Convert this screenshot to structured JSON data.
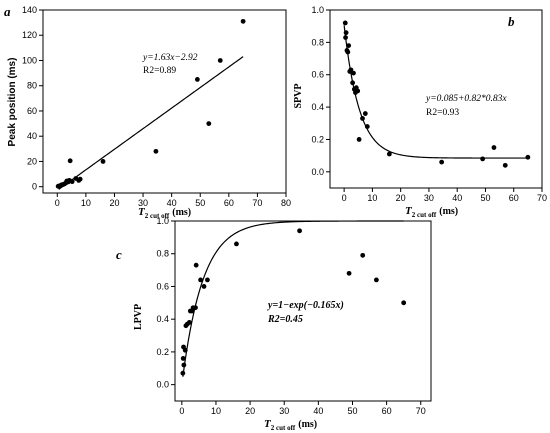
{
  "chart_data": [
    {
      "type": "scatter",
      "panel": "a",
      "xlabel": "T2 cut off (ms)",
      "xlabel_main": "T",
      "xlabel_sub": "2 cut off",
      "xlabel_unit": "(ms)",
      "ylabel": "Peak position (ms)",
      "xlim": [
        -5,
        80
      ],
      "ylim": [
        -5,
        140
      ],
      "xticks": [
        "0",
        "10",
        "20",
        "30",
        "40",
        "50",
        "60",
        "70",
        "80"
      ],
      "yticks": [
        "0",
        "20",
        "40",
        "60",
        "80",
        "100",
        "120",
        "140"
      ],
      "annotations": [
        "y=1.63x−2.92",
        "R2=0.89"
      ],
      "fit": {
        "kind": "linear",
        "slope": 1.63,
        "intercept": -2.92,
        "x_range": [
          0.5,
          65
        ]
      },
      "series": [
        {
          "points": [
            [
              0.3,
              0.3
            ],
            [
              0.6,
              0.5
            ],
            [
              1.0,
              0.8
            ],
            [
              1.5,
              1.5
            ],
            [
              2.0,
              1.7
            ],
            [
              2.5,
              2.2
            ],
            [
              3.0,
              3.0
            ],
            [
              3.3,
              4.5
            ],
            [
              3.8,
              3.8
            ],
            [
              4.2,
              5.0
            ],
            [
              4.5,
              20.5
            ],
            [
              5.2,
              4.0
            ],
            [
              6.5,
              6.5
            ],
            [
              7.5,
              5.0
            ],
            [
              8.0,
              6.0
            ],
            [
              16.0,
              20.0
            ],
            [
              34.5,
              28.0
            ],
            [
              49.0,
              85.0
            ],
            [
              53.0,
              50.0
            ],
            [
              57.0,
              100.0
            ],
            [
              65.0,
              131.0
            ]
          ]
        }
      ]
    },
    {
      "type": "scatter",
      "panel": "b",
      "xlabel": "T2 cut off (ms)",
      "xlabel_main": "T",
      "xlabel_sub": "2 cut off",
      "xlabel_unit": "(ms)",
      "ylabel": "SPVP",
      "xlim": [
        -5,
        70
      ],
      "ylim": [
        -0.1,
        1.0
      ],
      "xticks": [
        "0",
        "10",
        "20",
        "30",
        "40",
        "50",
        "60",
        "70"
      ],
      "yticks": [
        "0.0",
        "0.2",
        "0.4",
        "0.6",
        "0.8",
        "1.0"
      ],
      "annotations": [
        "y=0.085+0.82*0.83x",
        "R2=0.93"
      ],
      "fit": {
        "kind": "exponential",
        "a": 0.085,
        "b": 0.82,
        "base": 0.83,
        "x_range": [
          0.0,
          65
        ]
      },
      "series": [
        {
          "points": [
            [
              0.4,
              0.92
            ],
            [
              0.5,
              0.83
            ],
            [
              0.7,
              0.86
            ],
            [
              1.0,
              0.75
            ],
            [
              1.3,
              0.74
            ],
            [
              1.6,
              0.78
            ],
            [
              2.0,
              0.62
            ],
            [
              2.4,
              0.63
            ],
            [
              3.0,
              0.55
            ],
            [
              3.3,
              0.61
            ],
            [
              3.6,
              0.51
            ],
            [
              4.0,
              0.49
            ],
            [
              4.3,
              0.52
            ],
            [
              4.8,
              0.5
            ],
            [
              5.3,
              0.2
            ],
            [
              6.5,
              0.33
            ],
            [
              7.5,
              0.36
            ],
            [
              8.2,
              0.28
            ],
            [
              16.0,
              0.11
            ],
            [
              34.5,
              0.06
            ],
            [
              49.0,
              0.08
            ],
            [
              53.0,
              0.15
            ],
            [
              57.0,
              0.04
            ],
            [
              65.0,
              0.09
            ]
          ]
        }
      ]
    },
    {
      "type": "scatter",
      "panel": "c",
      "xlabel": "T2 cut off (ms)",
      "xlabel_main": "T",
      "xlabel_sub": "2 cut off",
      "xlabel_unit": "(ms)",
      "ylabel": "LPVP",
      "xlim": [
        -2,
        73
      ],
      "ylim": [
        -0.1,
        1.0
      ],
      "xticks": [
        "0",
        "10",
        "20",
        "30",
        "40",
        "50",
        "60",
        "70"
      ],
      "yticks": [
        "0.0",
        "0.2",
        "0.4",
        "0.6",
        "0.8",
        "1.0"
      ],
      "annotations": [
        "y=1−exp(−0.165x)",
        "R2=0.45"
      ],
      "fit": {
        "kind": "saturation",
        "k": 0.165,
        "x_range": [
          0.3,
          65
        ]
      },
      "series": [
        {
          "points": [
            [
              0.3,
              0.07
            ],
            [
              0.4,
              0.16
            ],
            [
              0.5,
              0.23
            ],
            [
              0.6,
              0.12
            ],
            [
              1.0,
              0.21
            ],
            [
              1.2,
              0.36
            ],
            [
              1.6,
              0.37
            ],
            [
              2.2,
              0.38
            ],
            [
              2.5,
              0.45
            ],
            [
              3.0,
              0.45
            ],
            [
              3.3,
              0.47
            ],
            [
              4.0,
              0.47
            ],
            [
              4.2,
              0.73
            ],
            [
              5.5,
              0.64
            ],
            [
              6.5,
              0.6
            ],
            [
              7.5,
              0.64
            ],
            [
              16.0,
              0.86
            ],
            [
              34.5,
              0.94
            ],
            [
              49.0,
              0.68
            ],
            [
              53.0,
              0.79
            ],
            [
              57.0,
              0.64
            ],
            [
              65.0,
              0.5
            ]
          ]
        }
      ]
    }
  ]
}
